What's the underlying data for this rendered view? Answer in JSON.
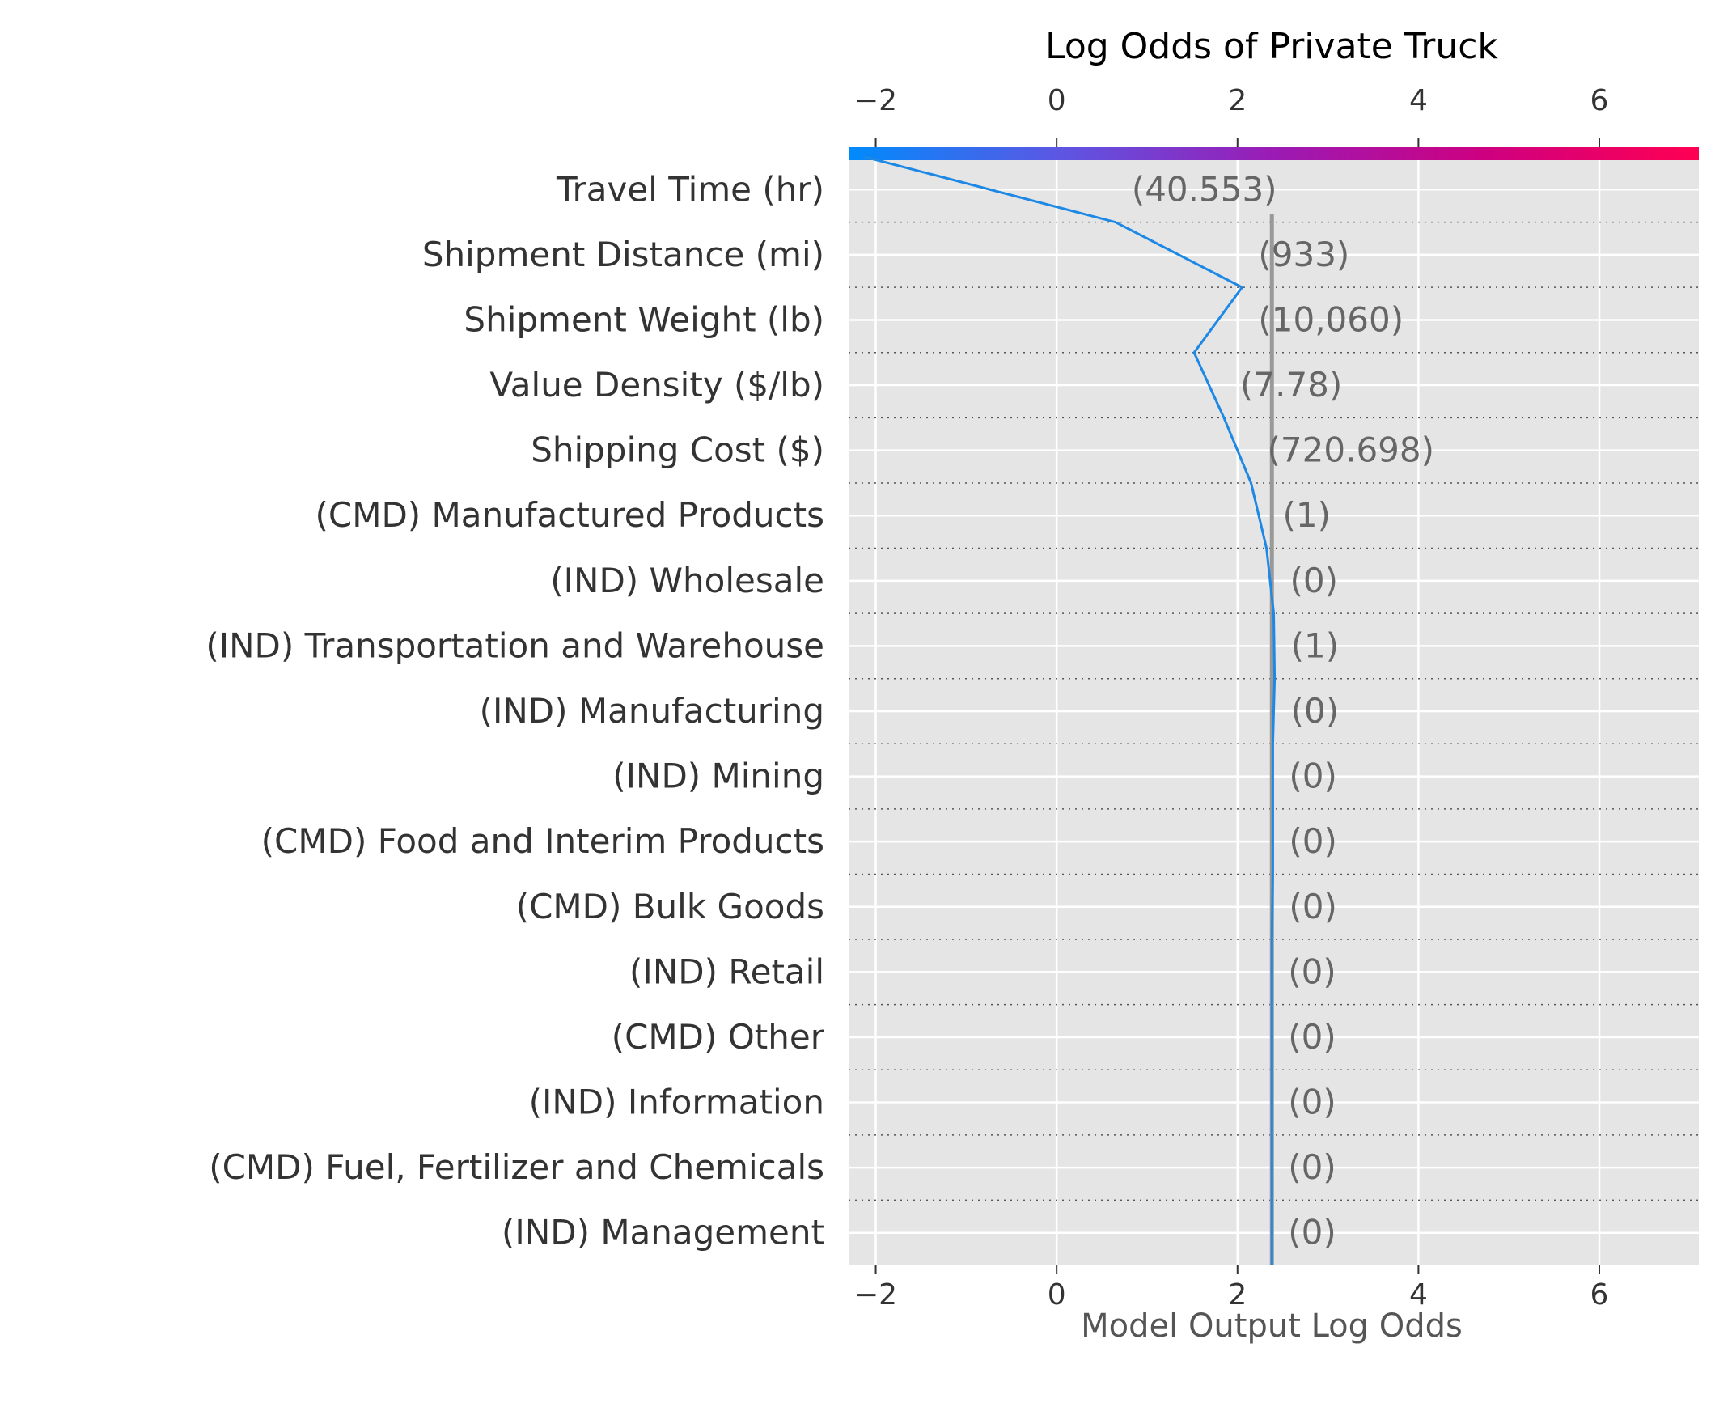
{
  "chart_data": {
    "type": "line",
    "title": "Log Odds of Private Truck",
    "xlabel": "Model Output Log Odds",
    "xlim": [
      -2.3,
      7.1
    ],
    "xticks": [
      -2,
      0,
      2,
      4,
      6
    ],
    "xtick_labels": [
      "−2",
      "0",
      "2",
      "4",
      "6"
    ],
    "grid": true,
    "base_value": 2.38,
    "features": [
      {
        "label": "Travel Time (hr)",
        "value_text": "(40.553)"
      },
      {
        "label": "Shipment Distance (mi)",
        "value_text": "(933)"
      },
      {
        "label": "Shipment Weight (lb)",
        "value_text": "(10,060)"
      },
      {
        "label": "Value Density ($/lb)",
        "value_text": "(7.78)"
      },
      {
        "label": "Shipping Cost ($)",
        "value_text": "(720.698)"
      },
      {
        "label": "(CMD) Manufactured Products",
        "value_text": "(1)"
      },
      {
        "label": "(IND) Wholesale",
        "value_text": "(0)"
      },
      {
        "label": "(IND) Transportation and Warehouse",
        "value_text": "(1)"
      },
      {
        "label": "(IND) Manufacturing",
        "value_text": "(0)"
      },
      {
        "label": "(IND) Mining",
        "value_text": "(0)"
      },
      {
        "label": "(CMD) Food and Interim Products",
        "value_text": "(0)"
      },
      {
        "label": "(CMD) Bulk Goods",
        "value_text": "(0)"
      },
      {
        "label": "(IND) Retail",
        "value_text": "(0)"
      },
      {
        "label": "(CMD) Other",
        "value_text": "(0)"
      },
      {
        "label": "(IND) Information",
        "value_text": "(0)"
      },
      {
        "label": "(CMD) Fuel, Fertilizer and Chemicals",
        "value_text": "(0)"
      },
      {
        "label": "(IND) Management",
        "value_text": "(0)"
      }
    ],
    "decision_path": [
      -2.12,
      0.65,
      2.05,
      1.52,
      1.85,
      2.15,
      2.32,
      2.4,
      2.41,
      2.39,
      2.39,
      2.39,
      2.38,
      2.38,
      2.38,
      2.38,
      2.38,
      2.38
    ],
    "colors": {
      "background": "#e5e5e5",
      "grid": "#ffffff",
      "line": "#1e88e5",
      "base_line": "#999999",
      "colorbar": [
        "#008bfb",
        "#5d56e3",
        "#9b1bb4",
        "#ce0080",
        "#ff0052"
      ],
      "text": "#333333",
      "value_text": "#666666"
    }
  }
}
